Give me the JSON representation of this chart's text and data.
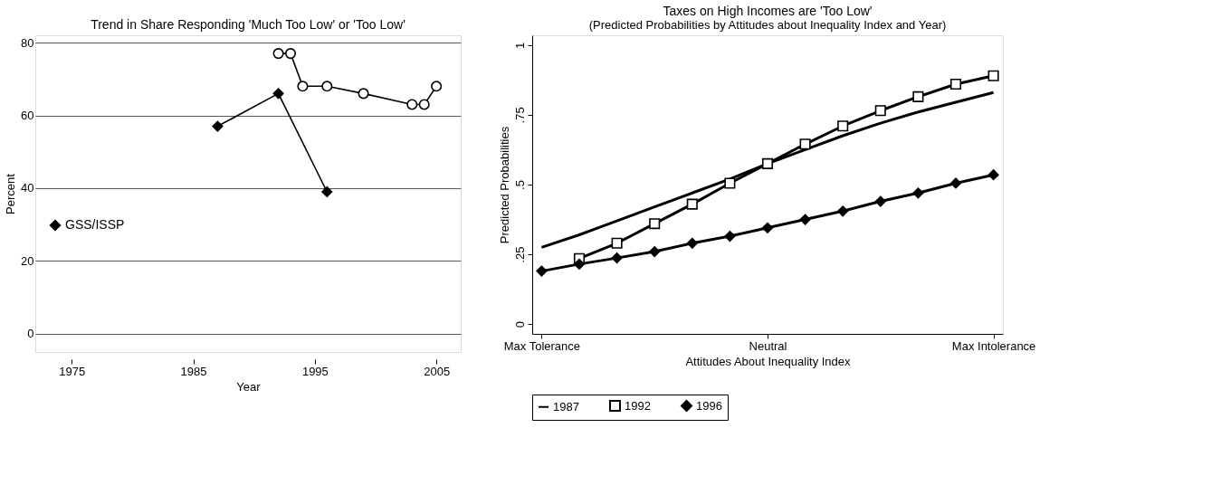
{
  "chart_data": [
    {
      "type": "line",
      "title": "Trend in Share Responding 'Much Too Low' or 'Too Low'",
      "xlabel": "Year",
      "ylabel": "Percent",
      "xlim": [
        1972,
        2007
      ],
      "xticks": [
        1975,
        1985,
        1995,
        2005
      ],
      "ylim": [
        -5,
        82
      ],
      "yticks": [
        0,
        20,
        40,
        60,
        80
      ],
      "grid": "y",
      "legend": "left",
      "series": [
        {
          "color": "#000000",
          "marker": "circle",
          "x": [
            1992,
            1993,
            1994,
            1996,
            1999,
            2003,
            2004,
            2005
          ],
          "values": [
            77,
            77,
            68,
            68,
            66,
            63,
            63,
            68
          ]
        },
        {
          "name": "GSS/ISSP",
          "color": "#000000",
          "marker": "diamond",
          "x": [
            1987,
            1992,
            1996
          ],
          "values": [
            57,
            66,
            39
          ]
        }
      ]
    },
    {
      "type": "line",
      "title": "Taxes on High Incomes  are 'Too Low'",
      "subtitle": "(Predicted Probabilities by Attitudes about  Inequality Index and Year)",
      "xlabel": "Attitudes About Inequality Index",
      "ylabel": "Predicted Probabilities",
      "categories": [
        "Max  Tolerance",
        null,
        null,
        null,
        null,
        null,
        "Neutral",
        null,
        null,
        null,
        null,
        null,
        "Max Intolerance"
      ],
      "ylim": [
        -0.035,
        1.035
      ],
      "yticks": [
        0,
        {
          "value": 0.25,
          "label": ".25"
        },
        {
          "value": 0.5,
          "label": ".5"
        },
        {
          "value": 0.75,
          "label": ".75"
        },
        1
      ],
      "grid": false,
      "legend": "bottom",
      "series": [
        {
          "name": "1987",
          "color": "#000000",
          "marker": "none",
          "values": [
            0.275,
            0.32,
            0.37,
            0.42,
            0.47,
            0.52,
            0.575,
            0.625,
            0.675,
            0.72,
            0.76,
            0.795,
            0.83
          ]
        },
        {
          "name": "1992",
          "color": "#000000",
          "marker": "square",
          "values": [
            null,
            0.235,
            0.29,
            0.36,
            0.43,
            0.505,
            0.575,
            0.645,
            0.71,
            0.765,
            0.815,
            0.86,
            0.89
          ]
        },
        {
          "name": "1996",
          "color": "#000000",
          "marker": "diamond",
          "values": [
            0.19,
            0.215,
            0.237,
            0.26,
            0.29,
            0.315,
            0.345,
            0.375,
            0.405,
            0.44,
            0.47,
            0.505,
            0.535
          ]
        }
      ]
    }
  ]
}
